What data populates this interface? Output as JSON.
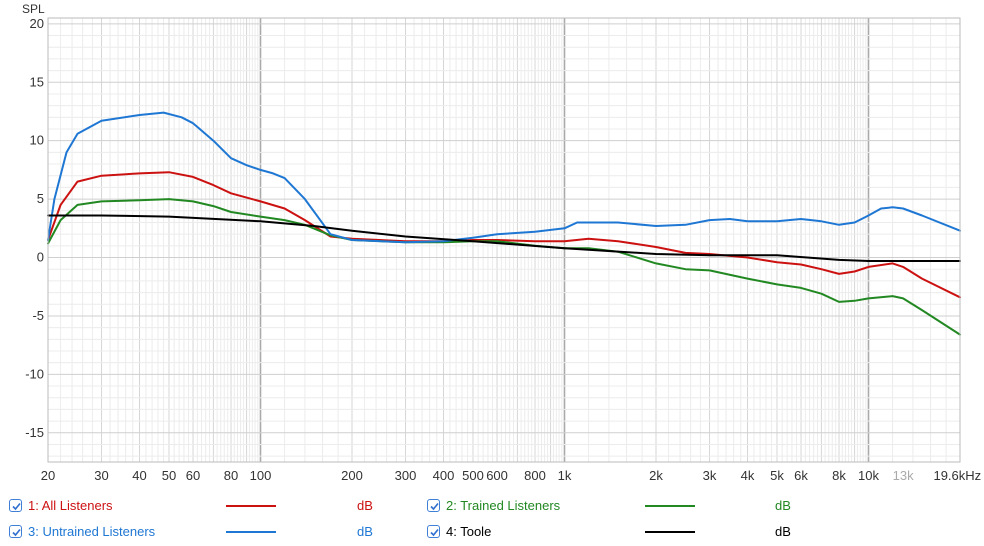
{
  "chart_data": {
    "type": "line",
    "ylabel": "SPL",
    "xscale": "log",
    "xlim": [
      20,
      20000
    ],
    "ylim": [
      -17.5,
      20.5
    ],
    "grid": true,
    "x_ticks": [
      {
        "v": 20,
        "label": "20"
      },
      {
        "v": 30,
        "label": "30"
      },
      {
        "v": 40,
        "label": "40"
      },
      {
        "v": 50,
        "label": "50"
      },
      {
        "v": 60,
        "label": "60"
      },
      {
        "v": 80,
        "label": "80"
      },
      {
        "v": 100,
        "label": "100"
      },
      {
        "v": 200,
        "label": "200"
      },
      {
        "v": 300,
        "label": "300"
      },
      {
        "v": 400,
        "label": "400"
      },
      {
        "v": 500,
        "label": "500"
      },
      {
        "v": 600,
        "label": "600"
      },
      {
        "v": 800,
        "label": "800"
      },
      {
        "v": 1000,
        "label": "1k"
      },
      {
        "v": 2000,
        "label": "2k"
      },
      {
        "v": 3000,
        "label": "3k"
      },
      {
        "v": 4000,
        "label": "4k"
      },
      {
        "v": 5000,
        "label": "5k"
      },
      {
        "v": 6000,
        "label": "6k"
      },
      {
        "v": 8000,
        "label": "8k"
      },
      {
        "v": 10000,
        "label": "10k"
      },
      {
        "v": 13000,
        "label": "13k",
        "muted": true
      },
      {
        "v": 19600,
        "label": "19.6kHz"
      }
    ],
    "y_ticks": [
      20,
      15,
      10,
      5,
      0,
      -5,
      -10,
      -15
    ],
    "series": [
      {
        "name": "1: All Listeners",
        "color": "#cc1111",
        "unit": "dB",
        "points": [
          [
            20,
            1.5
          ],
          [
            22,
            4.5
          ],
          [
            25,
            6.5
          ],
          [
            30,
            7.0
          ],
          [
            40,
            7.2
          ],
          [
            50,
            7.3
          ],
          [
            60,
            6.9
          ],
          [
            70,
            6.2
          ],
          [
            80,
            5.5
          ],
          [
            100,
            4.8
          ],
          [
            120,
            4.2
          ],
          [
            140,
            3.2
          ],
          [
            170,
            1.8
          ],
          [
            200,
            1.6
          ],
          [
            300,
            1.4
          ],
          [
            400,
            1.4
          ],
          [
            500,
            1.5
          ],
          [
            600,
            1.5
          ],
          [
            800,
            1.4
          ],
          [
            1000,
            1.4
          ],
          [
            1200,
            1.6
          ],
          [
            1500,
            1.4
          ],
          [
            2000,
            0.9
          ],
          [
            2500,
            0.4
          ],
          [
            3000,
            0.3
          ],
          [
            4000,
            0.0
          ],
          [
            5000,
            -0.4
          ],
          [
            6000,
            -0.6
          ],
          [
            7000,
            -1.0
          ],
          [
            8000,
            -1.4
          ],
          [
            9000,
            -1.2
          ],
          [
            10000,
            -0.8
          ],
          [
            12000,
            -0.5
          ],
          [
            13000,
            -0.8
          ],
          [
            15000,
            -1.8
          ],
          [
            20000,
            -3.4
          ]
        ]
      },
      {
        "name": "2: Trained Listeners",
        "color": "#228822",
        "unit": "dB",
        "points": [
          [
            20,
            1.2
          ],
          [
            22,
            3.2
          ],
          [
            25,
            4.5
          ],
          [
            30,
            4.8
          ],
          [
            40,
            4.9
          ],
          [
            50,
            5.0
          ],
          [
            60,
            4.8
          ],
          [
            70,
            4.4
          ],
          [
            80,
            3.9
          ],
          [
            100,
            3.5
          ],
          [
            120,
            3.2
          ],
          [
            140,
            2.8
          ],
          [
            170,
            1.9
          ],
          [
            200,
            1.5
          ],
          [
            300,
            1.3
          ],
          [
            400,
            1.3
          ],
          [
            500,
            1.4
          ],
          [
            600,
            1.4
          ],
          [
            800,
            1.0
          ],
          [
            1000,
            0.8
          ],
          [
            1200,
            0.8
          ],
          [
            1500,
            0.5
          ],
          [
            2000,
            -0.5
          ],
          [
            2500,
            -1.0
          ],
          [
            3000,
            -1.1
          ],
          [
            4000,
            -1.8
          ],
          [
            5000,
            -2.3
          ],
          [
            6000,
            -2.6
          ],
          [
            7000,
            -3.1
          ],
          [
            8000,
            -3.8
          ],
          [
            9000,
            -3.7
          ],
          [
            10000,
            -3.5
          ],
          [
            12000,
            -3.3
          ],
          [
            13000,
            -3.5
          ],
          [
            15000,
            -4.5
          ],
          [
            20000,
            -6.6
          ]
        ]
      },
      {
        "name": "3: Untrained Listeners",
        "color": "#1f77d4",
        "unit": "dB",
        "points": [
          [
            20,
            1.5
          ],
          [
            21,
            5.0
          ],
          [
            23,
            9.0
          ],
          [
            25,
            10.6
          ],
          [
            30,
            11.7
          ],
          [
            40,
            12.2
          ],
          [
            48,
            12.4
          ],
          [
            55,
            12.0
          ],
          [
            60,
            11.5
          ],
          [
            70,
            10.0
          ],
          [
            80,
            8.5
          ],
          [
            90,
            7.9
          ],
          [
            100,
            7.5
          ],
          [
            110,
            7.2
          ],
          [
            120,
            6.8
          ],
          [
            140,
            5.0
          ],
          [
            170,
            2.0
          ],
          [
            200,
            1.5
          ],
          [
            300,
            1.3
          ],
          [
            400,
            1.4
          ],
          [
            500,
            1.7
          ],
          [
            600,
            2.0
          ],
          [
            800,
            2.2
          ],
          [
            1000,
            2.5
          ],
          [
            1100,
            3.0
          ],
          [
            1500,
            3.0
          ],
          [
            2000,
            2.7
          ],
          [
            2500,
            2.8
          ],
          [
            3000,
            3.2
          ],
          [
            3500,
            3.3
          ],
          [
            4000,
            3.1
          ],
          [
            5000,
            3.1
          ],
          [
            6000,
            3.3
          ],
          [
            7000,
            3.1
          ],
          [
            8000,
            2.8
          ],
          [
            9000,
            3.0
          ],
          [
            10000,
            3.6
          ],
          [
            11000,
            4.2
          ],
          [
            12000,
            4.3
          ],
          [
            13000,
            4.2
          ],
          [
            15000,
            3.6
          ],
          [
            20000,
            2.3
          ]
        ]
      },
      {
        "name": "4: Toole",
        "color": "#000000",
        "unit": "dB",
        "points": [
          [
            20,
            3.6
          ],
          [
            30,
            3.6
          ],
          [
            50,
            3.5
          ],
          [
            100,
            3.1
          ],
          [
            150,
            2.7
          ],
          [
            200,
            2.3
          ],
          [
            300,
            1.8
          ],
          [
            500,
            1.4
          ],
          [
            1000,
            0.8
          ],
          [
            2000,
            0.3
          ],
          [
            3000,
            0.2
          ],
          [
            5000,
            0.2
          ],
          [
            8000,
            -0.2
          ],
          [
            10000,
            -0.3
          ],
          [
            15000,
            -0.3
          ],
          [
            20000,
            -0.3
          ]
        ]
      }
    ]
  },
  "legend": [
    {
      "label": "1: All Listeners",
      "unit": "dB",
      "color": "#cc1111",
      "checked": true
    },
    {
      "label": "2: Trained Listeners",
      "unit": "dB",
      "color": "#228822",
      "checked": true
    },
    {
      "label": "3: Untrained Listeners",
      "unit": "dB",
      "color": "#1f77d4",
      "checked": true
    },
    {
      "label": "4: Toole",
      "unit": "dB",
      "color": "#000000",
      "checked": true
    }
  ]
}
